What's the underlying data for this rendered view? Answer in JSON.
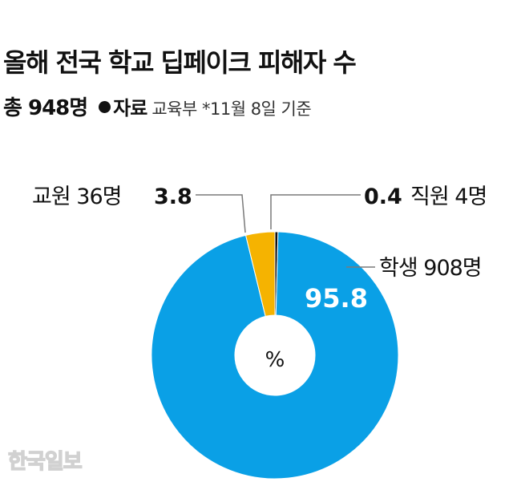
{
  "title": "올해 전국 학교 딥페이크 피해자 수",
  "total": "총 948명",
  "source_label": "자료",
  "source": "교육부 *11월 8일 기준",
  "center_label": "%",
  "watermark": "한국일보",
  "colors": {
    "students": "#0aa0e6",
    "teachers": "#f5b301",
    "staff": "#111111",
    "leader": "#7a7a7a"
  },
  "chart_data": {
    "type": "pie",
    "donut": true,
    "unit": "%",
    "slices": [
      {
        "label": "학생 908명",
        "value": 95.8,
        "value_text": "95.8",
        "color": "#0aa0e6"
      },
      {
        "label": "교원 36명",
        "value": 3.8,
        "value_text": "3.8",
        "color": "#f5b301"
      },
      {
        "label": "직원 4명",
        "value": 0.4,
        "value_text": "0.4",
        "color": "#111111"
      }
    ]
  }
}
